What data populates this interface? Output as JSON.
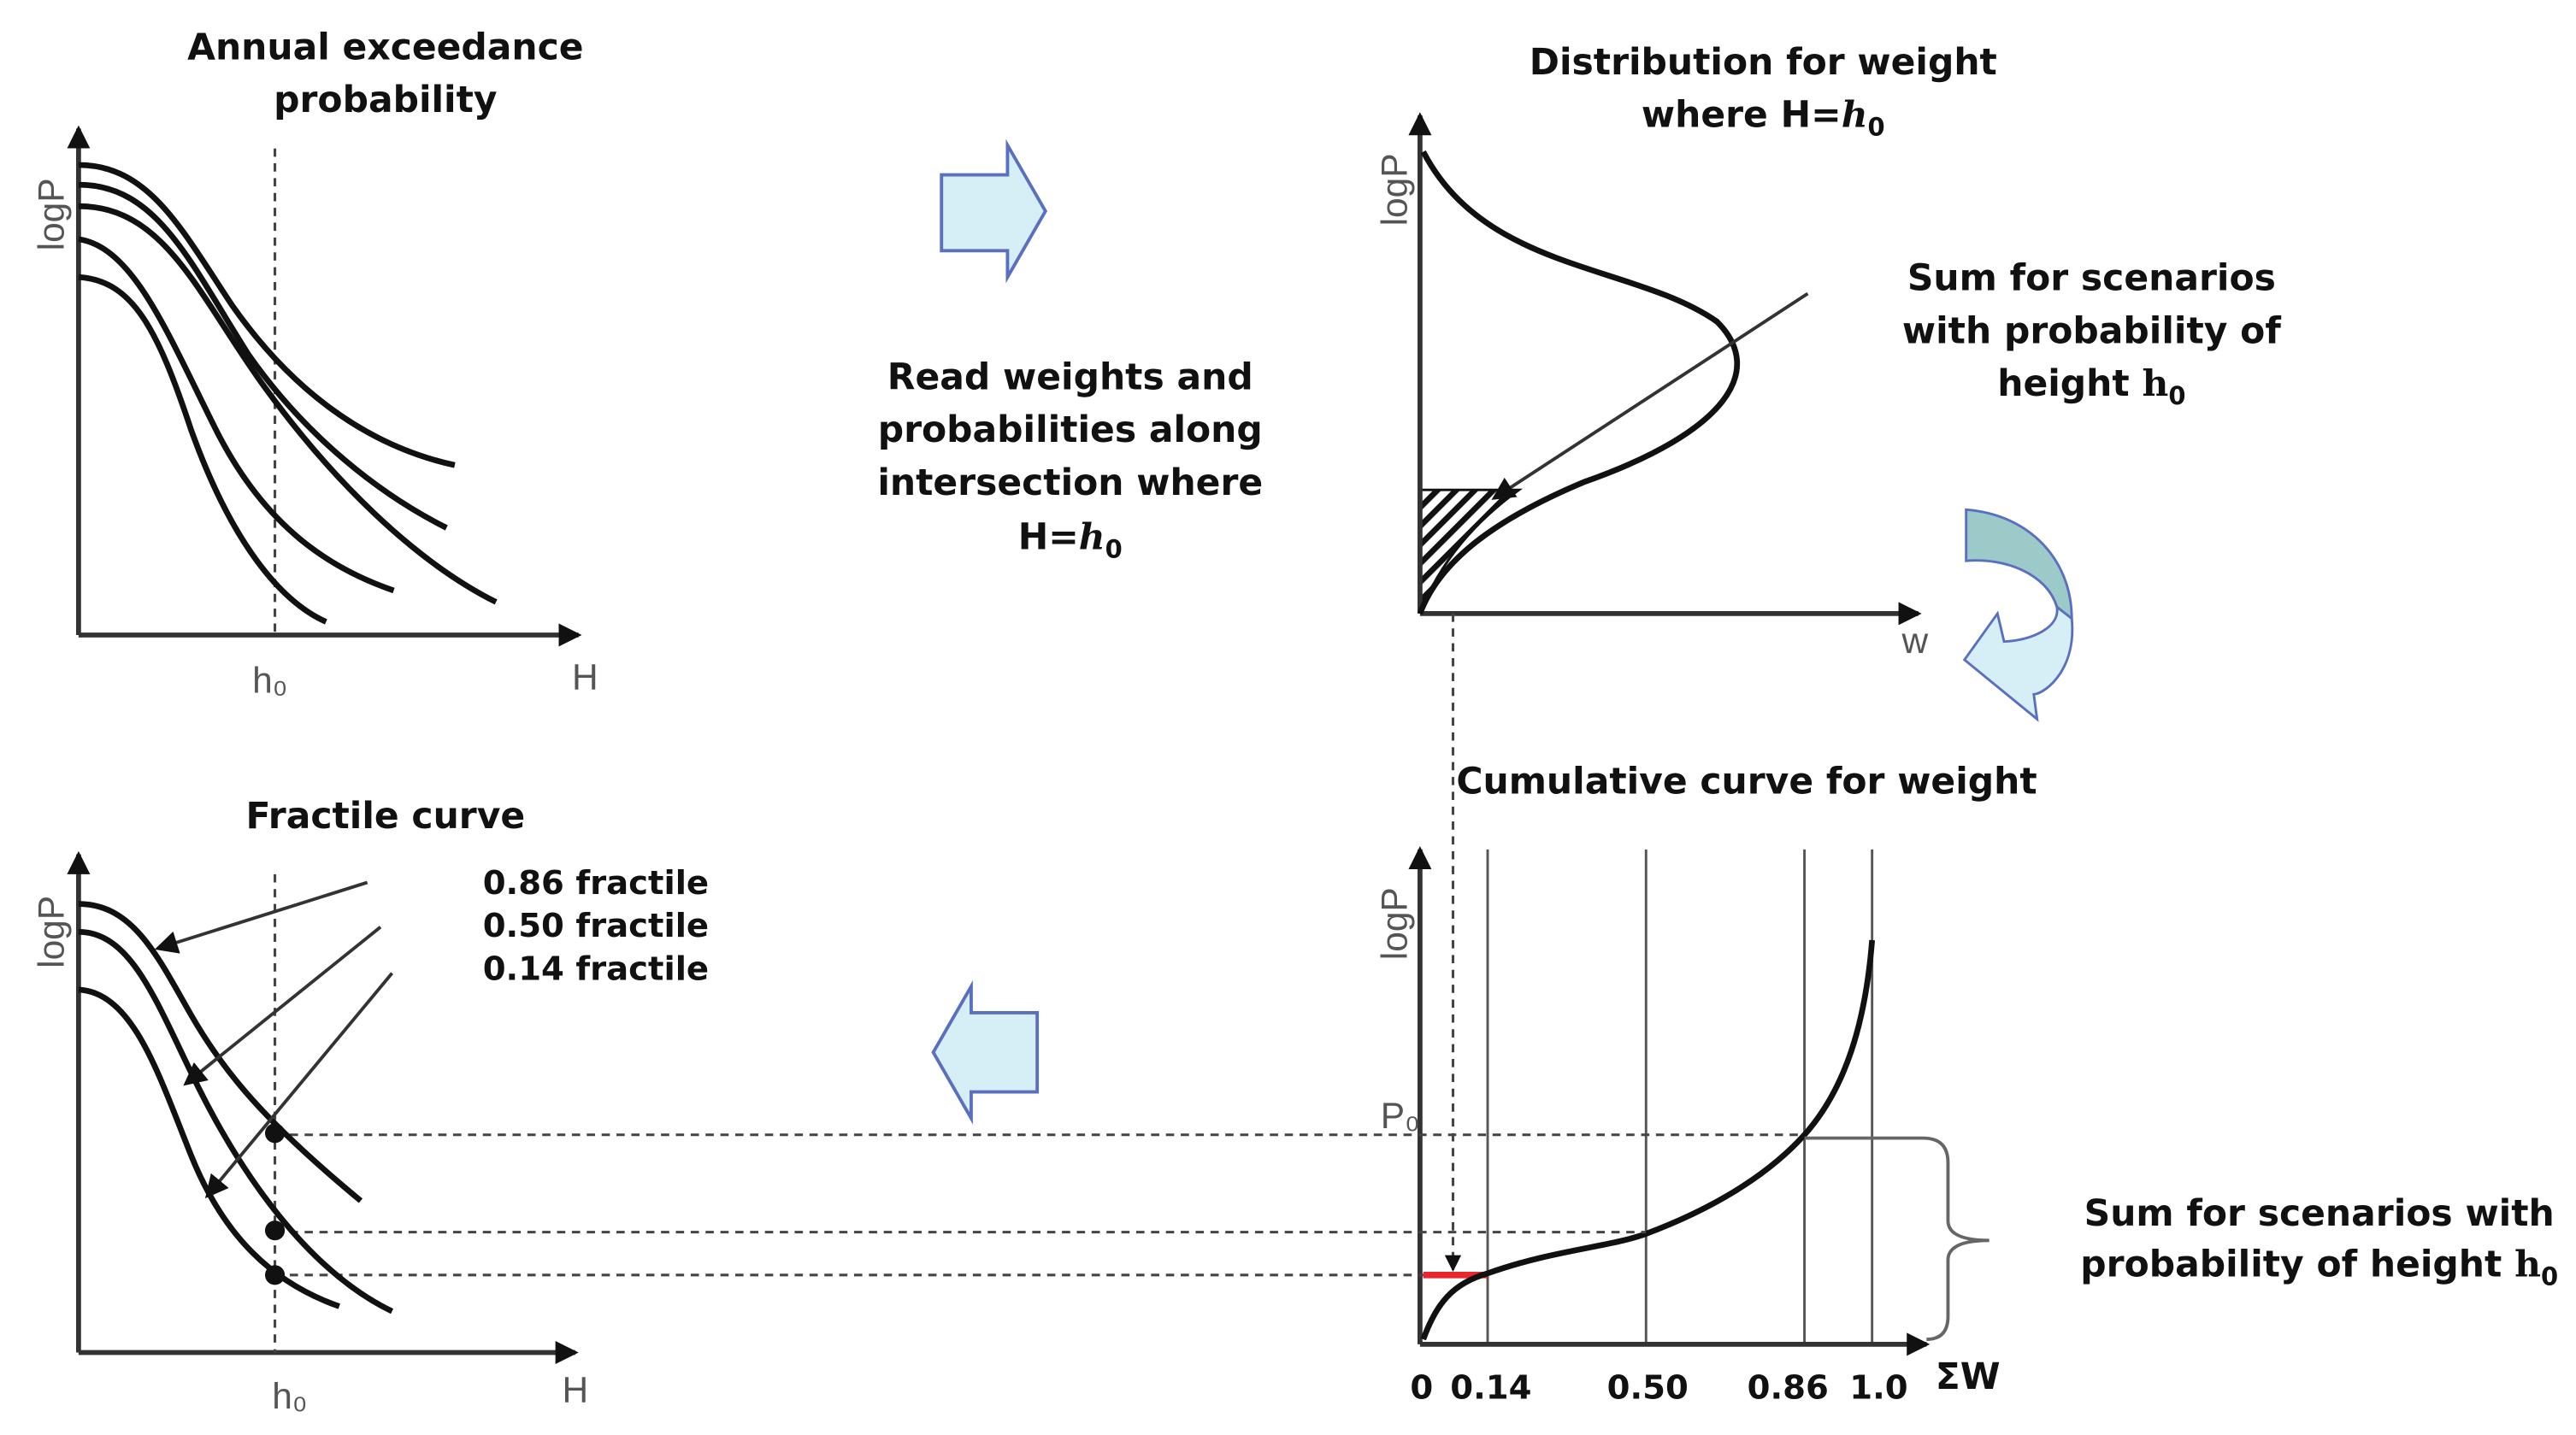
{
  "panel_exceedance": {
    "title_line1": "Annual exceedance",
    "title_line2": "probability",
    "y_label": "logP",
    "x_label": "H",
    "x_marker": "h₀"
  },
  "middle_text": {
    "line1": "Read weights and",
    "line2": "probabilities along",
    "line3": "intersection where",
    "line4_prefix": "H=",
    "line4_var": "h",
    "line4_sub": "0"
  },
  "panel_distribution": {
    "title_line1": "Distribution for weight",
    "title_line2_prefix": "where H=",
    "title_var": "h",
    "title_sub": "0",
    "y_label": "logP",
    "x_label": "w"
  },
  "sum_note_top": {
    "line1": "Sum for scenarios",
    "line2": "with probability of",
    "line3_prefix": "height ",
    "line3_var": "h",
    "line3_sub": "0"
  },
  "panel_cumulative": {
    "title": "Cumulative curve for weight",
    "y_label": "logP",
    "p_marker": "P₀",
    "x_label": "ΣW",
    "ticks": [
      "0",
      "0.14",
      "0.50",
      "0.86",
      "1.0"
    ]
  },
  "sum_note_bottom": {
    "line1": "Sum for scenarios with",
    "line2_prefix": "probability of height ",
    "line2_var": "h",
    "line2_sub": "0"
  },
  "panel_fractile": {
    "title": "Fractile curve",
    "y_label": "logP",
    "x_label": "H",
    "x_marker": "h₀",
    "fractiles": [
      "0.86 fractile",
      "0.50 fractile",
      "0.14 fractile"
    ]
  },
  "colors": {
    "arrow_fill": "#d6eef6",
    "arrow_stroke": "#5b6fc0",
    "arrow_teal": "#9ccac8",
    "highlight": "#e8262b"
  }
}
